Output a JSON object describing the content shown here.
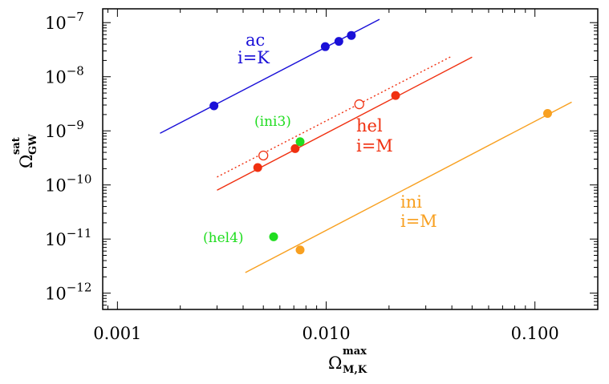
{
  "chart_data": {
    "type": "scatter",
    "x_scale": "log",
    "y_scale": "log",
    "xlim": [
      0.00085,
      0.2
    ],
    "ylim": [
      5e-13,
      1.8e-07
    ],
    "x_ticks": [
      {
        "value": 0.001,
        "label": "0.001"
      },
      {
        "value": 0.01,
        "label": "0.010"
      },
      {
        "value": 0.1,
        "label": "0.100"
      }
    ],
    "y_ticks": [
      {
        "value": 1e-12,
        "base": "10",
        "exp": "−12"
      },
      {
        "value": 1e-11,
        "base": "10",
        "exp": "−11"
      },
      {
        "value": 1e-10,
        "base": "10",
        "exp": "−10"
      },
      {
        "value": 1e-09,
        "base": "10",
        "exp": "−9"
      },
      {
        "value": 1e-08,
        "base": "10",
        "exp": "−8"
      },
      {
        "value": 1e-07,
        "base": "10",
        "exp": "−7"
      }
    ],
    "xlabel": {
      "main": "Ω",
      "sub": "M,K",
      "sup": "max"
    },
    "ylabel": {
      "main": "Ω",
      "sub": "GW",
      "sup": "sat"
    },
    "series": [
      {
        "key": "ac",
        "color": "#1a10d8",
        "marker": "filled",
        "points": [
          [
            0.0029,
            2.9e-09
          ],
          [
            0.0099,
            3.6e-08
          ],
          [
            0.0115,
            4.5e-08
          ],
          [
            0.0132,
            5.8e-08
          ]
        ],
        "fit": {
          "style": "solid",
          "from": [
            0.0016,
            9e-10
          ],
          "to": [
            0.018,
            1.15e-07
          ]
        }
      },
      {
        "key": "hel",
        "color": "#f03010",
        "marker": "filled",
        "points": [
          [
            0.0047,
            2.1e-10
          ],
          [
            0.0071,
            4.7e-10
          ],
          [
            0.0215,
            4.5e-09
          ]
        ],
        "fit": {
          "style": "solid",
          "from": [
            0.003,
            8e-11
          ],
          "to": [
            0.05,
            2.3e-08
          ]
        }
      },
      {
        "key": "hel_open",
        "color": "#f03010",
        "marker": "open",
        "points": [
          [
            0.005,
            3.5e-10
          ],
          [
            0.0144,
            3.1e-09
          ]
        ],
        "fit": {
          "style": "dotted",
          "from": [
            0.003,
            1.4e-10
          ],
          "to": [
            0.04,
            2.4e-08
          ]
        }
      },
      {
        "key": "ini",
        "color": "#f8a020",
        "marker": "filled",
        "points": [
          [
            0.0075,
            6.3e-12
          ],
          [
            0.115,
            2.1e-09
          ]
        ],
        "fit": {
          "style": "solid",
          "from": [
            0.0041,
            2.4e-12
          ],
          "to": [
            0.15,
            3.4e-09
          ]
        }
      },
      {
        "key": "green",
        "color": "#20dd20",
        "marker": "filled",
        "points": [
          [
            0.0075,
            6.3e-10
          ],
          [
            0.0056,
            1.1e-11
          ]
        ]
      }
    ],
    "annotations": {
      "ac_name": "ac",
      "ac_case": "i=K",
      "hel_name": "hel",
      "hel_case": "i=M",
      "ini_name": "ini",
      "ini_case": "i=M",
      "ini3": "(ini3)",
      "hel4": "(hel4)"
    }
  },
  "colors": {
    "ac": "#1a10d8",
    "hel": "#f03010",
    "ini": "#f8a020",
    "green": "#20dd20"
  }
}
